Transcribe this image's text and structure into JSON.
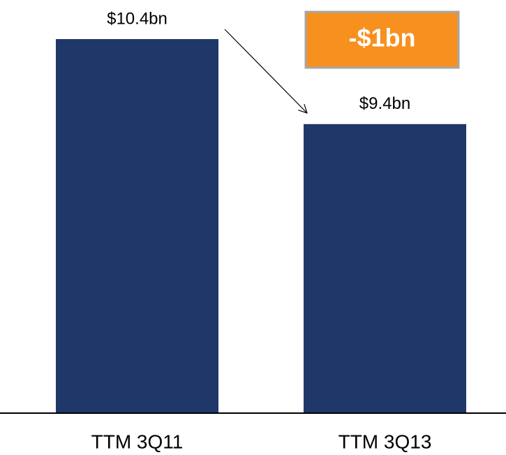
{
  "chart_data": {
    "type": "bar",
    "categories": [
      "TTM 3Q11",
      "TTM 3Q13"
    ],
    "values": [
      10.4,
      9.4
    ],
    "value_labels": [
      "$10.4bn",
      "$9.4bn"
    ],
    "color": "#1f3869",
    "ylim": [
      6,
      10.4
    ],
    "annotation": "-$1bn",
    "annotation_color": "#f7901e"
  }
}
